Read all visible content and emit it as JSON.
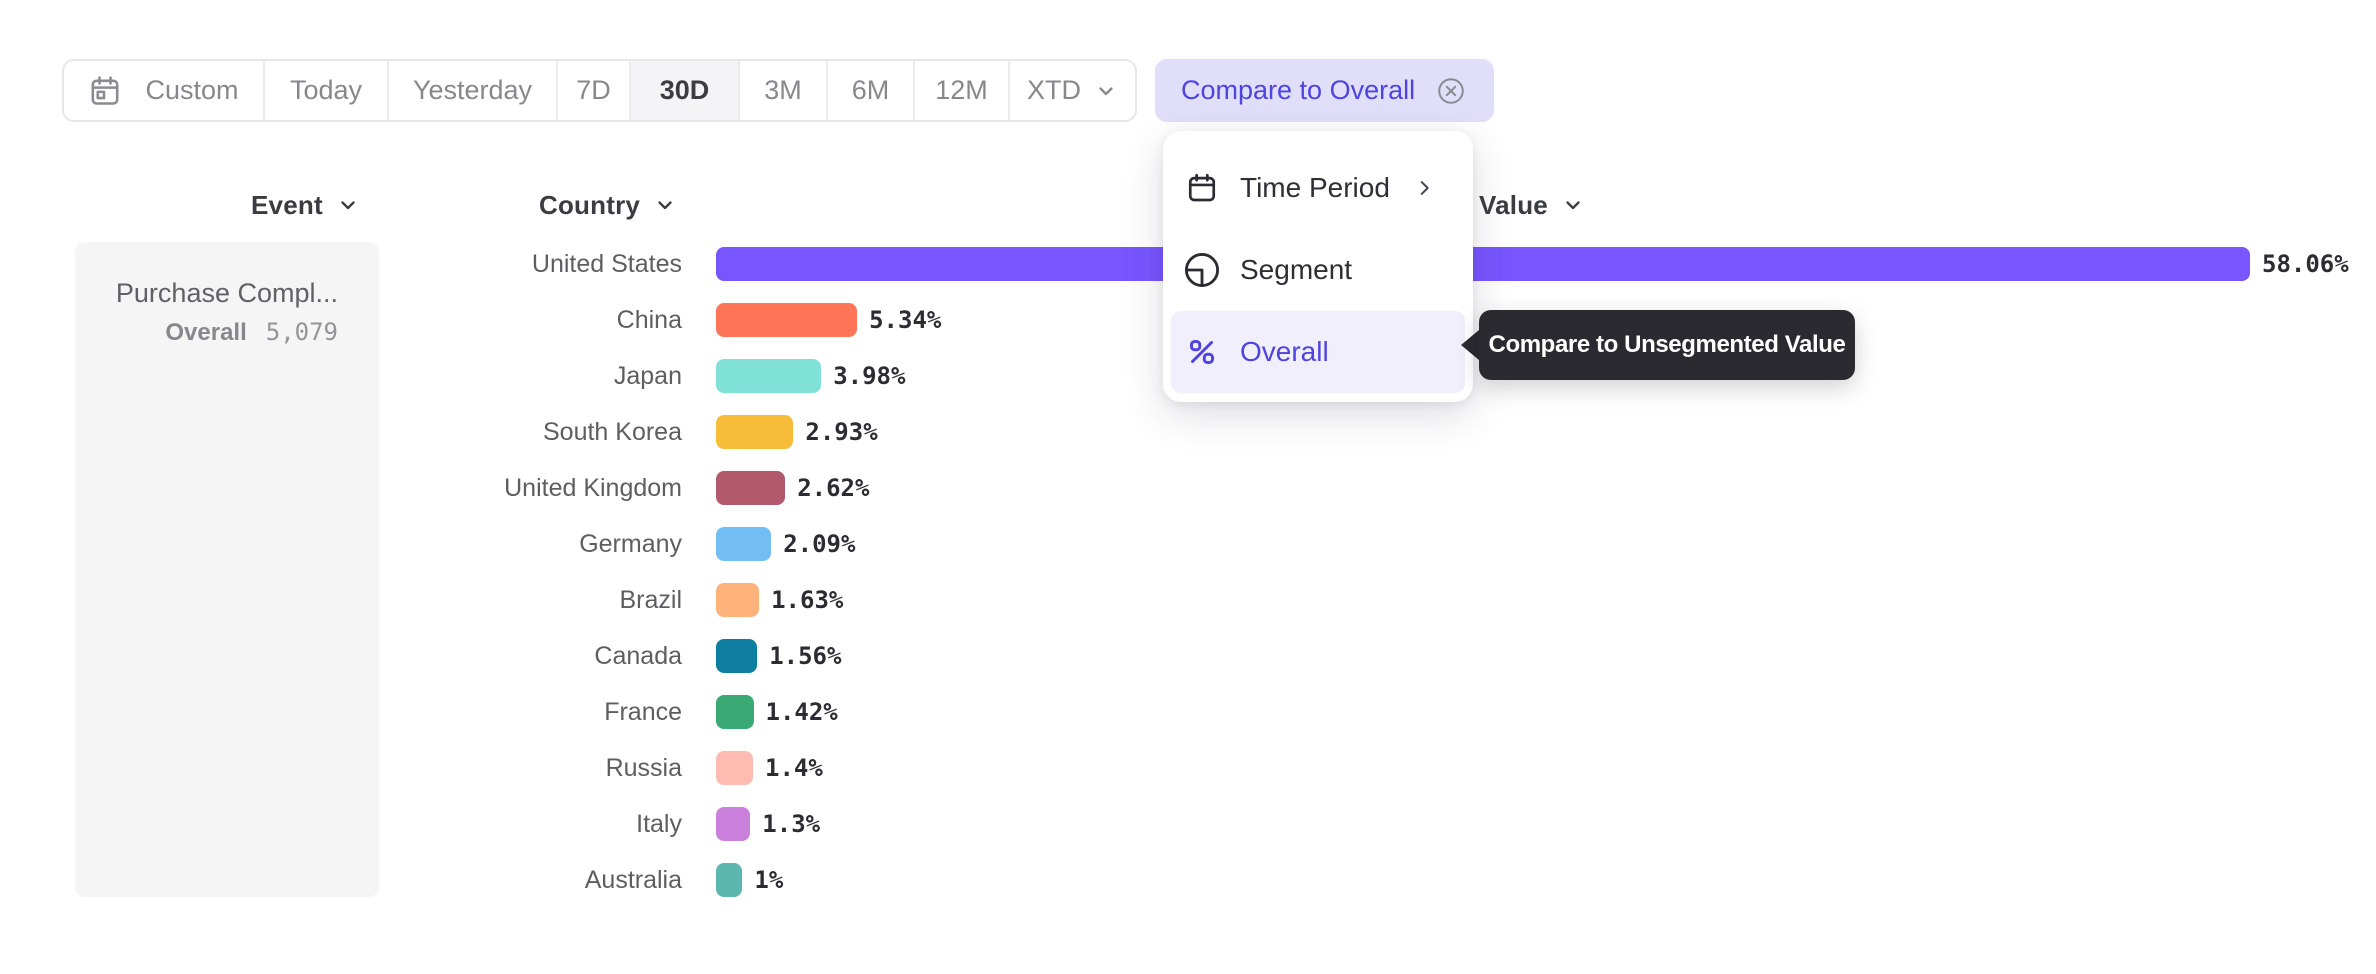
{
  "toolbar": {
    "items": [
      {
        "label": "Custom",
        "icon": "calendar"
      },
      {
        "label": "Today"
      },
      {
        "label": "Yesterday"
      },
      {
        "label": "7D"
      },
      {
        "label": "30D",
        "selected": true
      },
      {
        "label": "3M"
      },
      {
        "label": "6M"
      },
      {
        "label": "12M"
      },
      {
        "label": "XTD",
        "chevron": true
      }
    ]
  },
  "compare_chip": {
    "label": "Compare to Overall",
    "icon": "close-circle"
  },
  "columns": {
    "event": "Event",
    "country": "Country",
    "value": "Value"
  },
  "event_cell": {
    "name": "Purchase Compl...",
    "overall_label": "Overall",
    "overall_value": "5,079"
  },
  "menu": {
    "items": [
      {
        "label": "Time Period",
        "icon": "calendar",
        "has_submenu": true,
        "active": false
      },
      {
        "label": "Segment",
        "icon": "segment",
        "has_submenu": false,
        "active": false
      },
      {
        "label": "Overall",
        "icon": "percent",
        "has_submenu": false,
        "active": true
      }
    ]
  },
  "tooltip": {
    "text": "Compare to Unsegmented Value"
  },
  "chart_data": {
    "type": "bar",
    "orientation": "horizontal",
    "title": "",
    "xlabel": "",
    "ylabel": "Country",
    "xlim": [
      0,
      58.06
    ],
    "categories": [
      "United States",
      "China",
      "Japan",
      "South Korea",
      "United Kingdom",
      "Germany",
      "Brazil",
      "Canada",
      "France",
      "Russia",
      "Italy",
      "Australia"
    ],
    "values": [
      58.06,
      5.34,
      3.98,
      2.93,
      2.62,
      2.09,
      1.63,
      1.56,
      1.42,
      1.4,
      1.3,
      1.0
    ],
    "value_labels": [
      "58.06%",
      "5.34%",
      "3.98%",
      "2.93%",
      "2.62%",
      "2.09%",
      "1.63%",
      "1.56%",
      "1.42%",
      "1.4%",
      "1.3%",
      "1%"
    ],
    "bar_colors": [
      "#7856FF",
      "#FF7557",
      "#80E1D9",
      "#F8BC3B",
      "#B2596E",
      "#72BEF4",
      "#FFB27A",
      "#0D7EA0",
      "#3BA974",
      "#FEBBB2",
      "#CA80DC",
      "#5BB7AF"
    ]
  },
  "accent_colors": {
    "purple_text": "#4f44e0",
    "chip_bg": "#e1def9",
    "menu_highlight_bg": "#f1effc",
    "tooltip_bg": "#2b2a30",
    "bar_max_color": "#7856FF"
  }
}
